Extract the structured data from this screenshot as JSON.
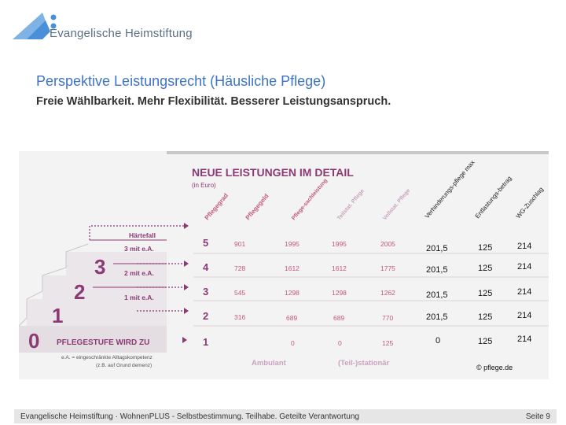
{
  "header": {
    "logo_text": "Evangelische Heimstiftung",
    "title": "Perspektive Leistungsrecht (Häusliche Pflege)",
    "subtitle": "Freie Wählbarkeit. Mehr Flexibilität. Besserer Leistungsanspruch."
  },
  "graphic": {
    "heading": "NEUE LEISTUNGEN IM DETAIL",
    "unit": "(in Euro)",
    "columns": [
      "Pflegegrad",
      "Pflegegeld",
      "Pflege-sachleistung",
      "Teilstat. Pflege",
      "Vollstat. Pflege",
      "Verhinderungs-pflege max",
      "Entlastungs-betrag",
      "WG-Zuschlag"
    ],
    "stairs": {
      "haertefall": "Härtefall",
      "labels": [
        "3 mit e.A.",
        "2 mit e.A.",
        "1 mit e.A.",
        "PFLEGESTUFE WIRD ZU"
      ],
      "steps": [
        "3",
        "2",
        "1",
        "0"
      ],
      "note1": "e.A. = eingeschränkte Alltagskompetenz",
      "note2": "(z.B. auf Grund demenz)"
    },
    "rows": [
      {
        "grad": "5",
        "geld": "901",
        "sach": "1995",
        "teil": "1995",
        "voll": "2005",
        "verh": "201,5",
        "entl": "125",
        "wg": "214"
      },
      {
        "grad": "4",
        "geld": "728",
        "sach": "1612",
        "teil": "1612",
        "voll": "1775",
        "verh": "201,5",
        "entl": "125",
        "wg": "214"
      },
      {
        "grad": "3",
        "geld": "545",
        "sach": "1298",
        "teil": "1298",
        "voll": "1262",
        "verh": "201,5",
        "entl": "125",
        "wg": "214"
      },
      {
        "grad": "2",
        "geld": "316",
        "sach": "689",
        "teil": "689",
        "voll": "770",
        "verh": "201,5",
        "entl": "125",
        "wg": "214"
      },
      {
        "grad": "1",
        "geld": "",
        "sach": "0",
        "teil": "0",
        "voll": "125",
        "verh": "0",
        "entl": "125",
        "wg": "214"
      }
    ],
    "footer_ambulant": "Ambulant",
    "footer_stationaer": "(Teil-)stationär",
    "copyright": "© pflege.de"
  },
  "footer": {
    "text": "Evangelische Heimstiftung · WohnenPLUS - Selbstbestimmung. Teilhabe. Geteilte Verantwortung",
    "page": "Seite 9"
  },
  "colors": {
    "accent_blue": "#3c73c8",
    "logo_blue": "#4a90d9",
    "purple": "#8b3a74",
    "light_purple": "#c9a3bf",
    "panel_grey": "#f2f2f2"
  }
}
